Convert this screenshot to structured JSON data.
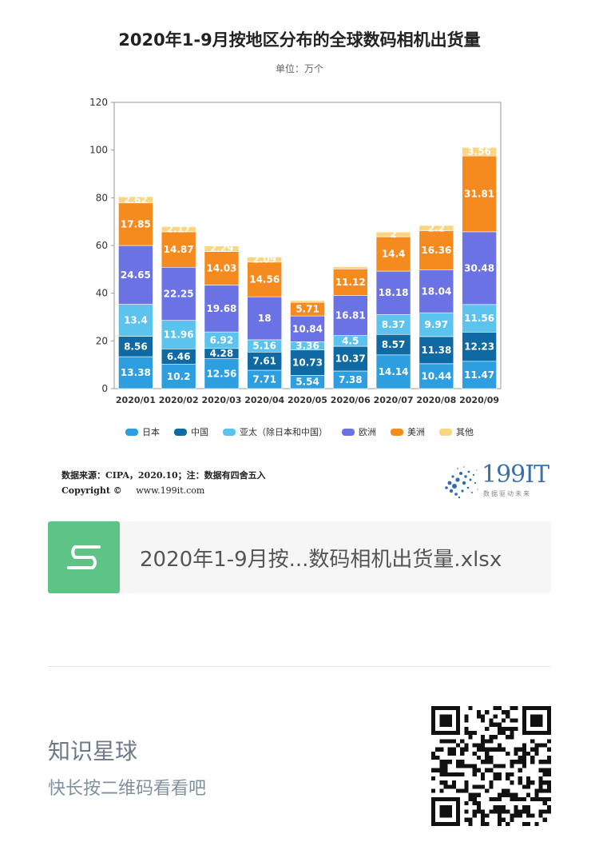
{
  "title": "2020年1-9月按地区分布的全球数码相机出货量",
  "subtitle": "单位：万个",
  "chart_data": {
    "type": "bar",
    "stacked": true,
    "categories": [
      "2020/01",
      "2020/02",
      "2020/03",
      "2020/04",
      "2020/05",
      "2020/06",
      "2020/07",
      "2020/08",
      "2020/09"
    ],
    "ylim": [
      0,
      120
    ],
    "yticks": [
      0,
      20,
      40,
      60,
      80,
      100,
      120
    ],
    "grid": false,
    "legend_position": "bottom",
    "series": [
      {
        "name": "日本",
        "color": "#2d9fe0",
        "labels": [
          "13.38",
          "10.2",
          "12.56",
          "7.71",
          "5.54",
          "7.38",
          "14.14",
          "10.44",
          "11.47"
        ],
        "values": [
          13.38,
          10.2,
          12.56,
          7.71,
          5.54,
          7.38,
          14.14,
          10.44,
          11.47
        ]
      },
      {
        "name": "中国",
        "color": "#0f6aa3",
        "labels": [
          "8.56",
          "6.46",
          "4.28",
          "7.61",
          "10.73",
          "10.37",
          "8.57",
          "11.38",
          "12.23"
        ],
        "values": [
          8.56,
          6.46,
          4.28,
          7.61,
          10.73,
          10.37,
          8.57,
          11.38,
          12.23
        ]
      },
      {
        "name": "亚太（除日本和中国）",
        "color": "#5cc3ef",
        "labels": [
          "13.4",
          "11.96",
          "6.92",
          "5.16",
          "3.36",
          "4.5",
          "8.37",
          "9.97",
          "11.56"
        ],
        "values": [
          13.4,
          11.96,
          6.92,
          5.16,
          3.36,
          4.5,
          8.37,
          9.97,
          11.56
        ]
      },
      {
        "name": "欧洲",
        "color": "#6b72e3",
        "labels": [
          "24.65",
          "22.25",
          "19.68",
          "18",
          "10.84",
          "16.81",
          "18.18",
          "18.04",
          "30.48"
        ],
        "values": [
          24.65,
          22.25,
          19.68,
          18,
          10.84,
          16.81,
          18.18,
          18.04,
          30.48
        ]
      },
      {
        "name": "美洲",
        "color": "#f58a1f",
        "labels": [
          "17.85",
          "14.87",
          "14.03",
          "14.56",
          "5.71",
          "11.12",
          "14.4",
          "16.36",
          "31.81"
        ],
        "values": [
          17.85,
          14.87,
          14.03,
          14.56,
          5.71,
          11.12,
          14.4,
          16.36,
          31.81
        ]
      },
      {
        "name": "其他",
        "color": "#fbd580",
        "labels": [
          "2.62",
          "2.17",
          "2.29",
          "2.09",
          "",
          "",
          "2",
          "2.2",
          "3.56"
        ],
        "values": [
          2.62,
          2.17,
          2.29,
          2.09,
          0.73,
          0.93,
          2,
          2.2,
          3.56
        ]
      }
    ]
  },
  "footer": {
    "source": "数据来源：CIPA，2020.10；注：数据有四舍五入",
    "copyright": "Copyright ©",
    "url": "www.199it.com",
    "logo_text": "199IT",
    "logo_sub": "数据驱动未来"
  },
  "file": {
    "icon_letter": "S",
    "name": "2020年1-9月按...数码相机出货量.xlsx"
  },
  "promo": {
    "title": "知识星球",
    "subtitle": "快长按二维码看看吧"
  }
}
